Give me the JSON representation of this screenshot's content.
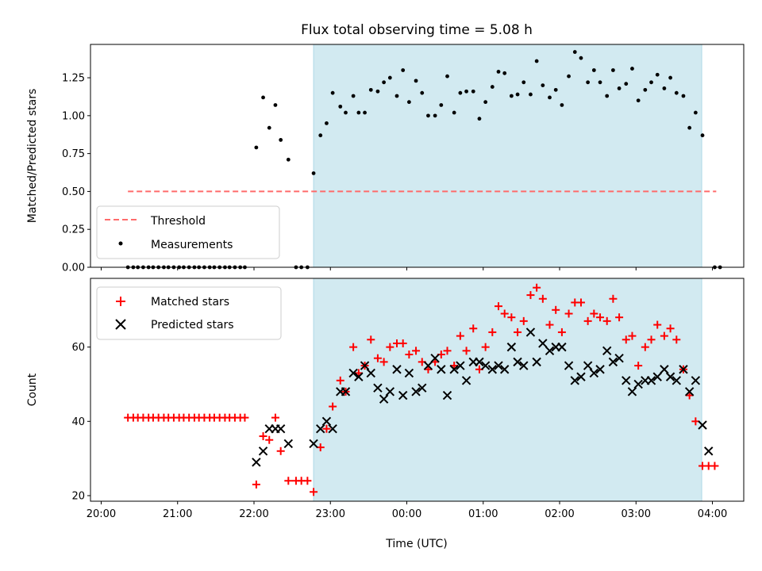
{
  "chart_data": [
    {
      "type": "scatter",
      "title": "Flux total observing time = 5.08 h",
      "ylabel": "Matched/Predicted stars",
      "xlabel": "",
      "x_unit": "hours since 20:00 UTC",
      "xlim": [
        -0.14,
        8.41
      ],
      "ylim": [
        0,
        1.47
      ],
      "yticks": [
        0.0,
        0.25,
        0.5,
        0.75,
        1.0,
        1.25
      ],
      "ytick_labels": [
        "0.00",
        "0.25",
        "0.50",
        "0.75",
        "1.00",
        "1.25"
      ],
      "shaded_span": [
        2.78,
        7.86
      ],
      "shade_color": "#add8e6",
      "threshold": {
        "name": "Threshold",
        "y": 0.5,
        "x_range": [
          0.35,
          8.05
        ],
        "color": "#ff6b6b"
      },
      "series": [
        {
          "name": "Measurements",
          "marker": "dot",
          "color": "#000000",
          "x": [
            0.35,
            0.42,
            0.48,
            0.55,
            0.62,
            0.68,
            0.75,
            0.82,
            0.88,
            0.95,
            1.02,
            1.08,
            1.15,
            1.22,
            1.28,
            1.35,
            1.42,
            1.48,
            1.55,
            1.62,
            1.68,
            1.75,
            1.82,
            1.88,
            2.03,
            2.12,
            2.2,
            2.28,
            2.35,
            2.45,
            2.55,
            2.62,
            2.7,
            2.78,
            2.87,
            2.95,
            3.03,
            3.13,
            3.2,
            3.3,
            3.37,
            3.45,
            3.53,
            3.62,
            3.7,
            3.78,
            3.87,
            3.95,
            4.03,
            4.12,
            4.2,
            4.28,
            4.37,
            4.45,
            4.53,
            4.62,
            4.7,
            4.78,
            4.87,
            4.95,
            5.03,
            5.12,
            5.2,
            5.28,
            5.37,
            5.45,
            5.53,
            5.62,
            5.7,
            5.78,
            5.87,
            5.95,
            6.03,
            6.12,
            6.2,
            6.28,
            6.37,
            6.45,
            6.53,
            6.62,
            6.7,
            6.78,
            6.87,
            6.95,
            7.03,
            7.12,
            7.2,
            7.28,
            7.37,
            7.45,
            7.53,
            7.62,
            7.7,
            7.78,
            7.87,
            8.03,
            8.1
          ],
          "y": [
            0,
            0,
            0,
            0,
            0,
            0,
            0,
            0,
            0,
            0,
            0,
            0,
            0,
            0,
            0,
            0,
            0,
            0,
            0,
            0,
            0,
            0,
            0,
            0,
            0.79,
            1.12,
            0.92,
            1.07,
            0.84,
            0.71,
            0,
            0,
            0,
            0.62,
            0.87,
            0.95,
            1.15,
            1.06,
            1.02,
            1.13,
            1.02,
            1.02,
            1.17,
            1.16,
            1.22,
            1.25,
            1.13,
            1.3,
            1.09,
            1.23,
            1.15,
            1.0,
            1.0,
            1.07,
            1.26,
            1.02,
            1.15,
            1.16,
            1.16,
            0.98,
            1.09,
            1.19,
            1.29,
            1.28,
            1.13,
            1.14,
            1.22,
            1.14,
            1.36,
            1.2,
            1.12,
            1.17,
            1.07,
            1.26,
            1.42,
            1.38,
            1.22,
            1.3,
            1.22,
            1.13,
            1.3,
            1.18,
            1.21,
            1.31,
            1.1,
            1.17,
            1.22,
            1.27,
            1.18,
            1.25,
            1.15,
            1.13,
            0.92,
            1.02,
            0.87,
            0,
            0
          ]
        }
      ],
      "legend_location": "lower left"
    },
    {
      "type": "scatter",
      "title": "",
      "ylabel": "Count",
      "xlabel": "Time (UTC)",
      "x_unit": "hours since 20:00 UTC",
      "xlim": [
        -0.14,
        8.41
      ],
      "ylim": [
        18.5,
        78.5
      ],
      "yticks": [
        20,
        40,
        60
      ],
      "ytick_labels": [
        "20",
        "40",
        "60"
      ],
      "xticks": [
        0,
        1,
        2,
        3,
        4,
        5,
        6,
        7,
        8
      ],
      "xtick_labels": [
        "20:00",
        "21:00",
        "22:00",
        "23:00",
        "00:00",
        "01:00",
        "02:00",
        "03:00",
        "04:00"
      ],
      "shaded_span": [
        2.78,
        7.86
      ],
      "shade_color": "#add8e6",
      "series": [
        {
          "name": "Matched stars",
          "marker": "plus",
          "color": "#ff0000",
          "x": [
            0.35,
            0.42,
            0.48,
            0.55,
            0.62,
            0.68,
            0.75,
            0.82,
            0.88,
            0.95,
            1.02,
            1.08,
            1.15,
            1.22,
            1.28,
            1.35,
            1.42,
            1.48,
            1.55,
            1.62,
            1.68,
            1.75,
            1.82,
            1.88,
            2.03,
            2.12,
            2.2,
            2.28,
            2.35,
            2.45,
            2.55,
            2.62,
            2.7,
            2.78,
            2.87,
            2.95,
            3.03,
            3.13,
            3.2,
            3.3,
            3.37,
            3.45,
            3.53,
            3.62,
            3.7,
            3.78,
            3.87,
            3.95,
            4.03,
            4.12,
            4.2,
            4.28,
            4.37,
            4.45,
            4.53,
            4.62,
            4.7,
            4.78,
            4.87,
            4.95,
            5.03,
            5.12,
            5.2,
            5.28,
            5.37,
            5.45,
            5.53,
            5.62,
            5.7,
            5.78,
            5.87,
            5.95,
            6.03,
            6.12,
            6.2,
            6.28,
            6.37,
            6.45,
            6.53,
            6.62,
            6.7,
            6.78,
            6.87,
            6.95,
            7.03,
            7.12,
            7.2,
            7.28,
            7.37,
            7.45,
            7.53,
            7.62,
            7.7,
            7.78,
            7.87,
            7.95,
            8.03
          ],
          "y": [
            41,
            41,
            41,
            41,
            41,
            41,
            41,
            41,
            41,
            41,
            41,
            41,
            41,
            41,
            41,
            41,
            41,
            41,
            41,
            41,
            41,
            41,
            41,
            41,
            23,
            36,
            35,
            41,
            32,
            24,
            24,
            24,
            24,
            21,
            33,
            38,
            44,
            51,
            48,
            60,
            53,
            55,
            62,
            57,
            56,
            60,
            61,
            61,
            58,
            59,
            56,
            54,
            56,
            58,
            59,
            55,
            63,
            59,
            65,
            54,
            60,
            64,
            71,
            69,
            68,
            64,
            67,
            74,
            76,
            73,
            66,
            70,
            64,
            69,
            72,
            72,
            67,
            69,
            68,
            67,
            73,
            68,
            62,
            63,
            55,
            60,
            62,
            66,
            63,
            65,
            62,
            54,
            47,
            40,
            28,
            28,
            28
          ]
        },
        {
          "name": "Predicted stars",
          "marker": "x",
          "color": "#000000",
          "x": [
            2.03,
            2.12,
            2.2,
            2.28,
            2.35,
            2.45,
            2.78,
            2.87,
            2.95,
            3.03,
            3.13,
            3.2,
            3.3,
            3.37,
            3.45,
            3.53,
            3.62,
            3.7,
            3.78,
            3.87,
            3.95,
            4.03,
            4.12,
            4.2,
            4.28,
            4.37,
            4.45,
            4.53,
            4.62,
            4.7,
            4.78,
            4.87,
            4.95,
            5.03,
            5.12,
            5.2,
            5.28,
            5.37,
            5.45,
            5.53,
            5.62,
            5.7,
            5.78,
            5.87,
            5.95,
            6.03,
            6.12,
            6.2,
            6.28,
            6.37,
            6.45,
            6.53,
            6.62,
            6.7,
            6.78,
            6.87,
            6.95,
            7.03,
            7.12,
            7.2,
            7.28,
            7.37,
            7.45,
            7.53,
            7.62,
            7.7,
            7.78,
            7.87,
            7.95
          ],
          "y": [
            29,
            32,
            38,
            38,
            38,
            34,
            34,
            38,
            40,
            38,
            48,
            48,
            53,
            52,
            55,
            53,
            49,
            46,
            48,
            54,
            47,
            53,
            48,
            49,
            55,
            57,
            54,
            47,
            54,
            55,
            51,
            56,
            56,
            55,
            54,
            55,
            54,
            60,
            56,
            55,
            64,
            56,
            61,
            59,
            60,
            60,
            55,
            51,
            52,
            55,
            53,
            54,
            59,
            56,
            57,
            51,
            48,
            50,
            51,
            51,
            52,
            54,
            52,
            51,
            54,
            48,
            51,
            39,
            32
          ]
        }
      ],
      "legend_location": "upper left"
    }
  ]
}
